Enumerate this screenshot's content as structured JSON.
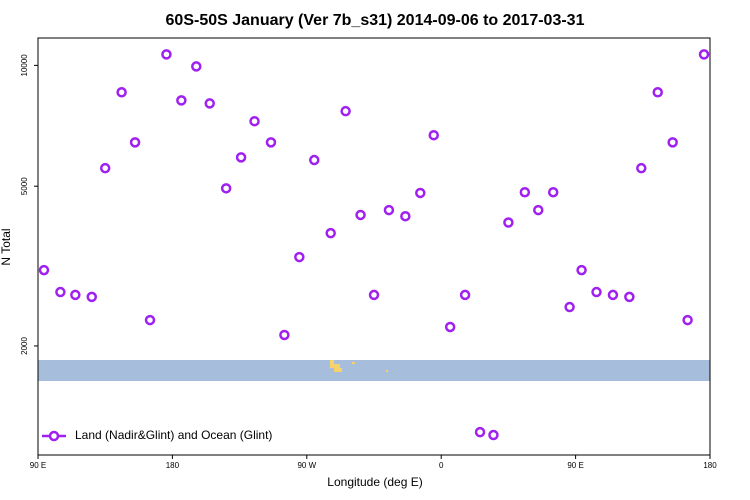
{
  "chart_data": {
    "type": "scatter",
    "title": "60S-50S January (Ver 7b_s31)   2014-09-06 to 2017-03-31",
    "xlabel": "Longitude (deg E)",
    "ylabel": "N Total",
    "log_y": true,
    "legend_position": "bottom-left",
    "grid": false,
    "xlim": [
      90,
      540
    ],
    "ylim": [
      1070,
      11700
    ],
    "xticks": [
      {
        "value": 90,
        "label": "90 E"
      },
      180,
      {
        "value": 270,
        "label": "90 W"
      },
      {
        "value": 360,
        "label": "0"
      },
      {
        "value": 450,
        "label": "90 E"
      },
      {
        "value": 540,
        "label": "180"
      }
    ],
    "yticks": [
      2000,
      5000,
      10000
    ],
    "series": [
      {
        "name": "Land (Nadir&Glint) and Ocean (Glint)",
        "color": "#a020f0",
        "x": [
          94,
          105,
          115,
          126,
          135,
          146,
          155,
          165,
          176,
          186,
          196,
          205,
          216,
          226,
          235,
          246,
          255,
          265,
          275,
          286,
          296,
          306,
          315,
          325,
          336,
          346,
          355,
          366,
          376,
          386,
          395,
          405,
          416,
          425,
          435,
          446,
          454,
          464,
          475,
          486,
          494,
          505,
          515,
          525,
          536
        ],
        "values": [
          3090,
          2725,
          2680,
          2650,
          5545,
          8570,
          6430,
          2320,
          10650,
          8180,
          9940,
          8040,
          4940,
          5900,
          7260,
          6430,
          2130,
          3330,
          5810,
          3820,
          7690,
          4240,
          2680,
          4360,
          4210,
          4810,
          6700,
          2230,
          2680,
          1220,
          1200,
          4060,
          4830,
          4360,
          4830,
          2500,
          3090,
          2725,
          2680,
          2650,
          5545,
          8570,
          6430,
          2320,
          10650
        ]
      }
    ]
  }
}
